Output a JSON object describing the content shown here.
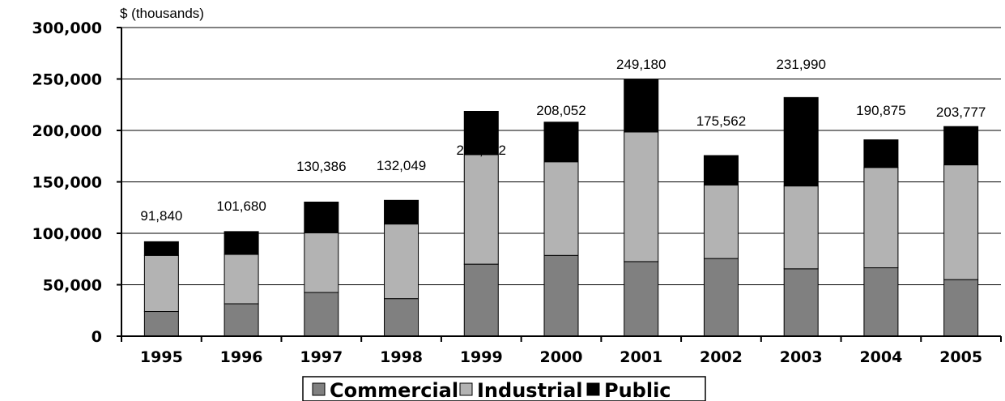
{
  "chart_data": {
    "type": "bar",
    "stacked": true,
    "ylabel": "$ (thousands)",
    "ylim": [
      0,
      300000
    ],
    "yticks": [
      "0",
      "50,000",
      "100,000",
      "150,000",
      "200,000",
      "250,000",
      "300,000"
    ],
    "ytick_values": [
      0,
      50000,
      100000,
      150000,
      200000,
      250000,
      300000
    ],
    "categories": [
      "1995",
      "1996",
      "1997",
      "1998",
      "1999",
      "2000",
      "2001",
      "2002",
      "2003",
      "2004",
      "2005"
    ],
    "series": [
      {
        "name": "Commercial",
        "color": "#808080",
        "values": [
          24000,
          31500,
          42500,
          36500,
          70000,
          78500,
          72500,
          75500,
          65500,
          66500,
          55000
        ]
      },
      {
        "name": "Industrial",
        "color": "#b3b3b3",
        "values": [
          54500,
          48000,
          58000,
          72500,
          106500,
          91000,
          126000,
          71500,
          80500,
          97500,
          111500
        ]
      },
      {
        "name": "Public",
        "color": "#000000",
        "values": [
          13340,
          22180,
          29886,
          23049,
          42002,
          38552,
          50680,
          28562,
          85990,
          26875,
          37277
        ]
      }
    ],
    "totals": [
      91840,
      101680,
      130386,
      132049,
      218502,
      208052,
      249180,
      175562,
      231990,
      190875,
      203777
    ],
    "total_labels": [
      "91,840",
      "101,680",
      "130,386",
      "132,049",
      "218,502",
      "208,052",
      "249,180",
      "175,562",
      "231,990",
      "190,875",
      "203,777"
    ],
    "legend": {
      "position": "bottom-center",
      "entries": [
        "Commercial",
        "Industrial",
        "Public"
      ]
    },
    "grid": true
  }
}
